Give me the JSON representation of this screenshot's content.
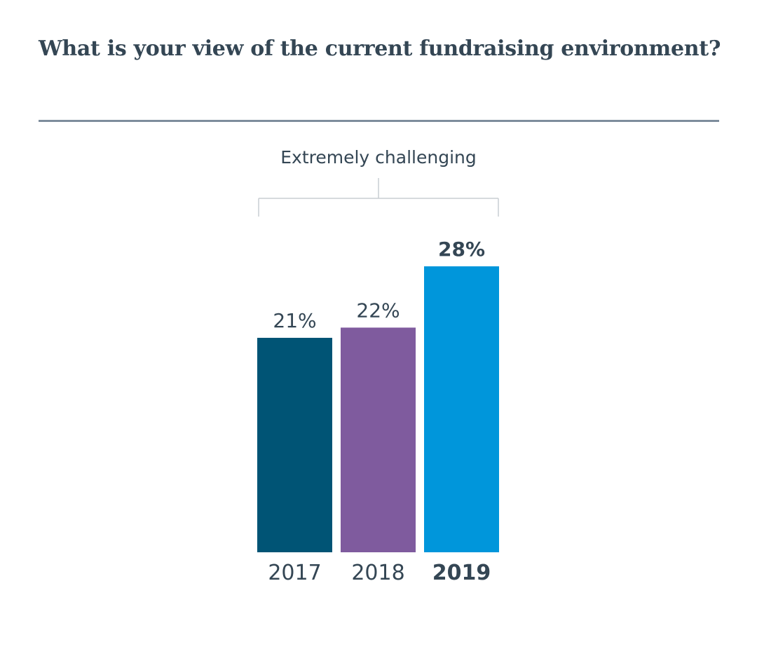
{
  "title": "What is your view of the current fundraising environment?",
  "chart_data": {
    "type": "bar",
    "title": "What is your view of the current fundraising environment?",
    "group_label": "Extremely challenging",
    "categories": [
      "2017",
      "2018",
      "2019"
    ],
    "values": [
      21,
      22,
      28
    ],
    "value_labels": [
      "21%",
      "22%",
      "28%"
    ],
    "highlight": "2019",
    "colors": [
      "#005475",
      "#7f5b9e",
      "#0096db"
    ],
    "xlabel": "",
    "ylabel": "",
    "ylim": [
      0,
      28
    ],
    "grid": false,
    "legend": "none"
  }
}
